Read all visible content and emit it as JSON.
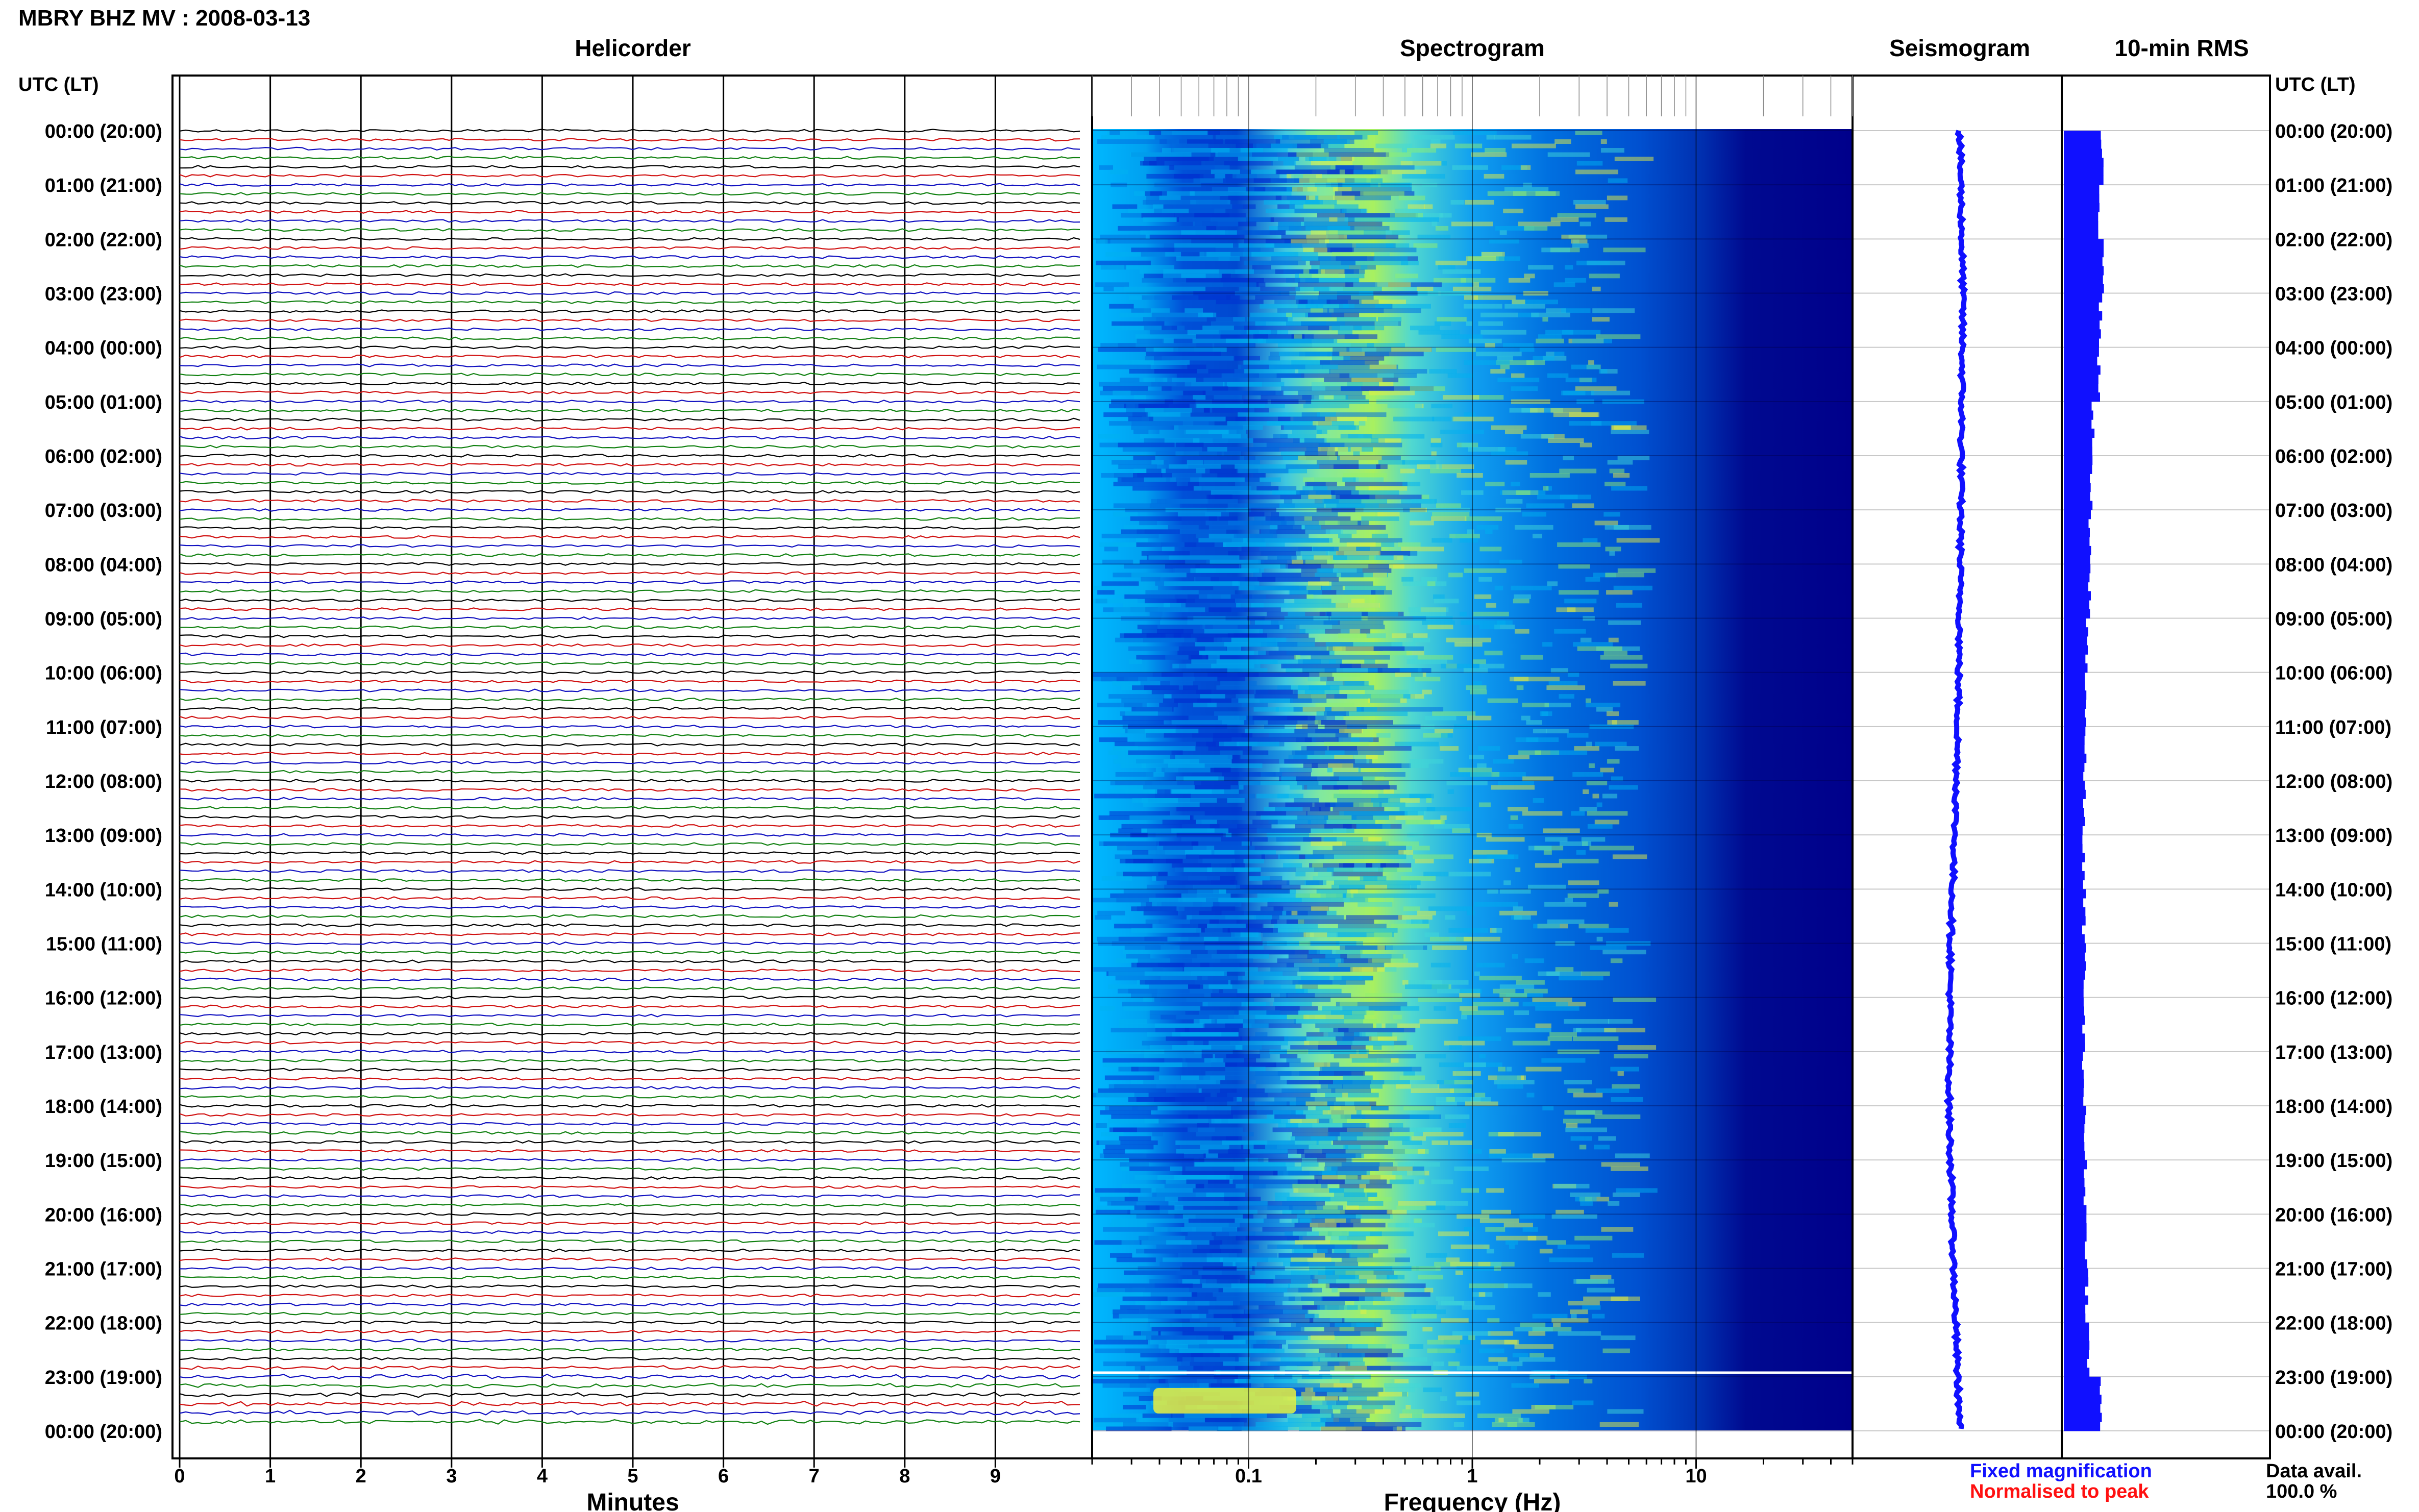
{
  "page": {
    "title": "MBRY BHZ MV : 2008-03-13",
    "panels": {
      "helicorder": "Helicorder",
      "spectrogram": "Spectrogram",
      "seismogram": "Seismogram",
      "rms": "10-min RMS"
    },
    "utc_label": "UTC (LT)",
    "x_label_minutes": "Minutes",
    "x_label_frequency": "Frequency (Hz)",
    "legend": {
      "fixed": "Fixed magnification",
      "normalised": "Normalised to peak",
      "fixed_color": "#1010ff",
      "normalised_color": "#ff1010"
    },
    "availability": {
      "label": "Data avail.",
      "value": "100.0 %"
    }
  },
  "chart_data": [
    {
      "type": "line",
      "panel": "helicorder",
      "xlabel": "Minutes",
      "xlim": [
        0,
        10
      ],
      "x_ticks": [
        0,
        1,
        2,
        3,
        4,
        5,
        6,
        7,
        8,
        9
      ],
      "row_labels": [
        "00:00 (20:00)",
        "01:00 (21:00)",
        "02:00 (22:00)",
        "03:00 (23:00)",
        "04:00 (00:00)",
        "05:00 (01:00)",
        "06:00 (02:00)",
        "07:00 (03:00)",
        "08:00 (04:00)",
        "09:00 (05:00)",
        "10:00 (06:00)",
        "11:00 (07:00)",
        "12:00 (08:00)",
        "13:00 (09:00)",
        "14:00 (10:00)",
        "15:00 (11:00)",
        "16:00 (12:00)",
        "17:00 (13:00)",
        "18:00 (14:00)",
        "19:00 (15:00)",
        "20:00 (16:00)",
        "21:00 (17:00)",
        "22:00 (18:00)",
        "23:00 (19:00)",
        "00:00 (20:00)"
      ],
      "trace_colors": [
        "#000000",
        "#d01010",
        "#1010c0",
        "#108010"
      ],
      "lines_per_hour": 6
    },
    {
      "type": "heatmap",
      "panel": "spectrogram",
      "xlabel": "Frequency (Hz)",
      "xscale": "log",
      "xlim": [
        0.02,
        50
      ],
      "x_tick_labels": [
        "0.1",
        "1",
        "10"
      ],
      "x_tick_values": [
        0.1,
        1,
        10
      ],
      "colormap": [
        "#00008b",
        "#0030d0",
        "#0070e0",
        "#00b0f0",
        "#40d8d8",
        "#90f070",
        "#e8f040"
      ]
    },
    {
      "type": "line",
      "panel": "seismogram",
      "trace_color": "#1010ff",
      "description_points_hours": [
        0,
        3,
        6,
        9,
        12,
        15,
        18,
        21,
        24
      ],
      "offset": [
        0.0,
        0.1,
        0.05,
        0.0,
        -0.1,
        -0.3,
        -0.35,
        -0.2,
        0.0
      ]
    },
    {
      "type": "bar",
      "panel": "10-min RMS",
      "orientation": "horizontal",
      "bar_color": "#1010ff",
      "hourly_rms": [
        0.62,
        0.58,
        0.66,
        0.6,
        0.57,
        0.48,
        0.44,
        0.42,
        0.42,
        0.38,
        0.36,
        0.34,
        0.33,
        0.32,
        0.33,
        0.34,
        0.32,
        0.33,
        0.34,
        0.35,
        0.37,
        0.38,
        0.4,
        0.6
      ]
    }
  ]
}
